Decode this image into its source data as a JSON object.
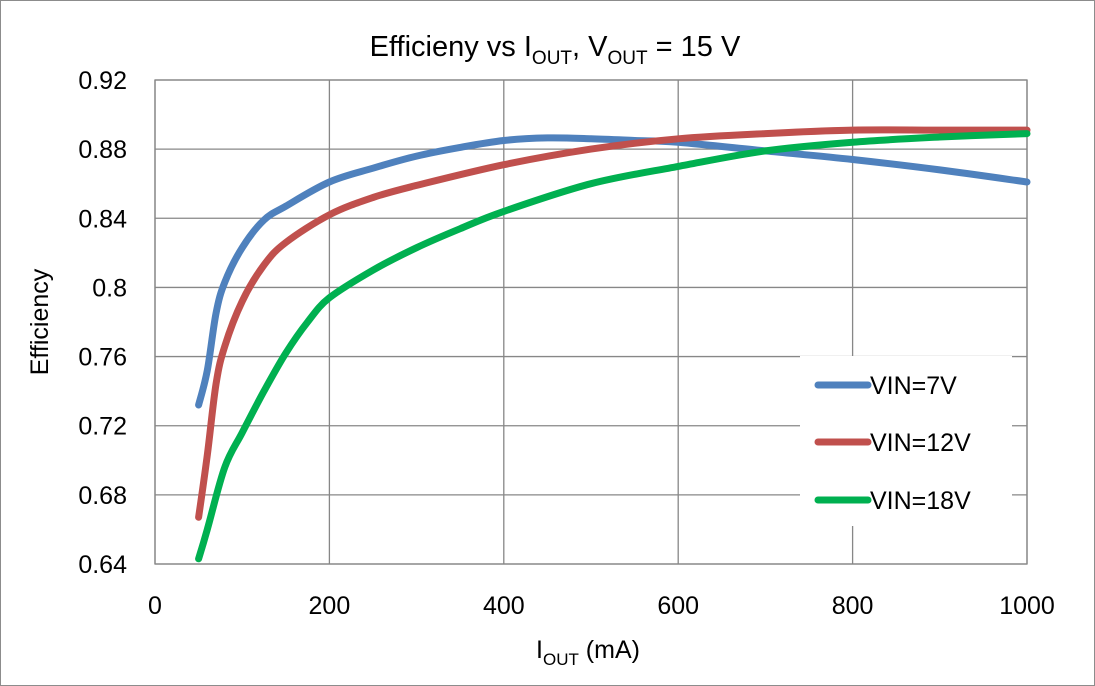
{
  "chart_data": {
    "type": "line",
    "title": {
      "main": "Efficieny vs I",
      "sub1": "OUT",
      "mid": ", V",
      "sub2": "OUT",
      "tail": " = 15 V"
    },
    "xlabel": {
      "main": "I",
      "sub": "OUT",
      "tail": " (mA)"
    },
    "ylabel": "Efficiency",
    "xlim": [
      0,
      1000
    ],
    "ylim": [
      0.64,
      0.92
    ],
    "xticks": [
      0,
      200,
      400,
      600,
      800,
      1000
    ],
    "yticks": [
      0.64,
      0.68,
      0.72,
      0.76,
      0.8,
      0.84,
      0.88,
      0.92
    ],
    "ytick_labels": [
      "0.64",
      "0.68",
      "0.72",
      "0.76",
      "0.8",
      "0.84",
      "0.88",
      "0.92"
    ],
    "grid": true,
    "legend_position": "right",
    "series": [
      {
        "name": "VIN=7V",
        "color": "#4F81BD",
        "points": [
          [
            50,
            0.732
          ],
          [
            60,
            0.752
          ],
          [
            70,
            0.785
          ],
          [
            80,
            0.803
          ],
          [
            100,
            0.823
          ],
          [
            125,
            0.839
          ],
          [
            150,
            0.847
          ],
          [
            200,
            0.861
          ],
          [
            250,
            0.869
          ],
          [
            300,
            0.876
          ],
          [
            350,
            0.881
          ],
          [
            400,
            0.885
          ],
          [
            450,
            0.8865
          ],
          [
            500,
            0.886
          ],
          [
            550,
            0.885
          ],
          [
            600,
            0.884
          ],
          [
            700,
            0.879
          ],
          [
            800,
            0.874
          ],
          [
            900,
            0.868
          ],
          [
            1000,
            0.861
          ]
        ]
      },
      {
        "name": "VIN=12V",
        "color": "#C0504D",
        "points": [
          [
            50,
            0.667
          ],
          [
            60,
            0.703
          ],
          [
            70,
            0.744
          ],
          [
            80,
            0.766
          ],
          [
            100,
            0.792
          ],
          [
            125,
            0.813
          ],
          [
            150,
            0.826
          ],
          [
            200,
            0.842
          ],
          [
            250,
            0.852
          ],
          [
            300,
            0.859
          ],
          [
            400,
            0.871
          ],
          [
            500,
            0.88
          ],
          [
            600,
            0.886
          ],
          [
            700,
            0.889
          ],
          [
            800,
            0.891
          ],
          [
            900,
            0.891
          ],
          [
            1000,
            0.891
          ]
        ]
      },
      {
        "name": "VIN=18V",
        "color": "#00B050",
        "points": [
          [
            50,
            0.643
          ],
          [
            60,
            0.66
          ],
          [
            80,
            0.696
          ],
          [
            100,
            0.716
          ],
          [
            125,
            0.74
          ],
          [
            150,
            0.762
          ],
          [
            175,
            0.78
          ],
          [
            200,
            0.794
          ],
          [
            250,
            0.81
          ],
          [
            300,
            0.823
          ],
          [
            350,
            0.834
          ],
          [
            400,
            0.844
          ],
          [
            500,
            0.86
          ],
          [
            600,
            0.87
          ],
          [
            700,
            0.879
          ],
          [
            800,
            0.884
          ],
          [
            900,
            0.887
          ],
          [
            1000,
            0.889
          ]
        ]
      }
    ]
  }
}
